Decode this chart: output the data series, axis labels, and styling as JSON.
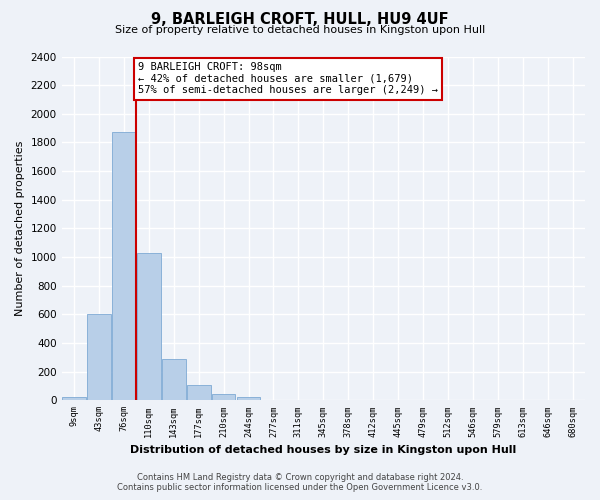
{
  "title": "9, BARLEIGH CROFT, HULL, HU9 4UF",
  "subtitle": "Size of property relative to detached houses in Kingston upon Hull",
  "xlabel": "Distribution of detached houses by size in Kingston upon Hull",
  "ylabel": "Number of detached properties",
  "bin_labels": [
    "9sqm",
    "43sqm",
    "76sqm",
    "110sqm",
    "143sqm",
    "177sqm",
    "210sqm",
    "244sqm",
    "277sqm",
    "311sqm",
    "345sqm",
    "378sqm",
    "412sqm",
    "445sqm",
    "479sqm",
    "512sqm",
    "546sqm",
    "579sqm",
    "613sqm",
    "646sqm",
    "680sqm"
  ],
  "bar_values": [
    20,
    600,
    1870,
    1030,
    285,
    105,
    45,
    20,
    0,
    0,
    0,
    0,
    0,
    0,
    0,
    0,
    0,
    0,
    0,
    0,
    0
  ],
  "bar_color": "#b8cfe8",
  "bar_edge_color": "#7eaad4",
  "vline_x_index": 2.47,
  "vline_color": "#cc0000",
  "annotation_title": "9 BARLEIGH CROFT: 98sqm",
  "annotation_line1": "← 42% of detached houses are smaller (1,679)",
  "annotation_line2": "57% of semi-detached houses are larger (2,249) →",
  "annotation_box_color": "#ffffff",
  "annotation_box_edgecolor": "#cc0000",
  "ylim": [
    0,
    2400
  ],
  "yticks": [
    0,
    200,
    400,
    600,
    800,
    1000,
    1200,
    1400,
    1600,
    1800,
    2000,
    2200,
    2400
  ],
  "footer_line1": "Contains HM Land Registry data © Crown copyright and database right 2024.",
  "footer_line2": "Contains public sector information licensed under the Open Government Licence v3.0.",
  "bg_color": "#eef2f8"
}
